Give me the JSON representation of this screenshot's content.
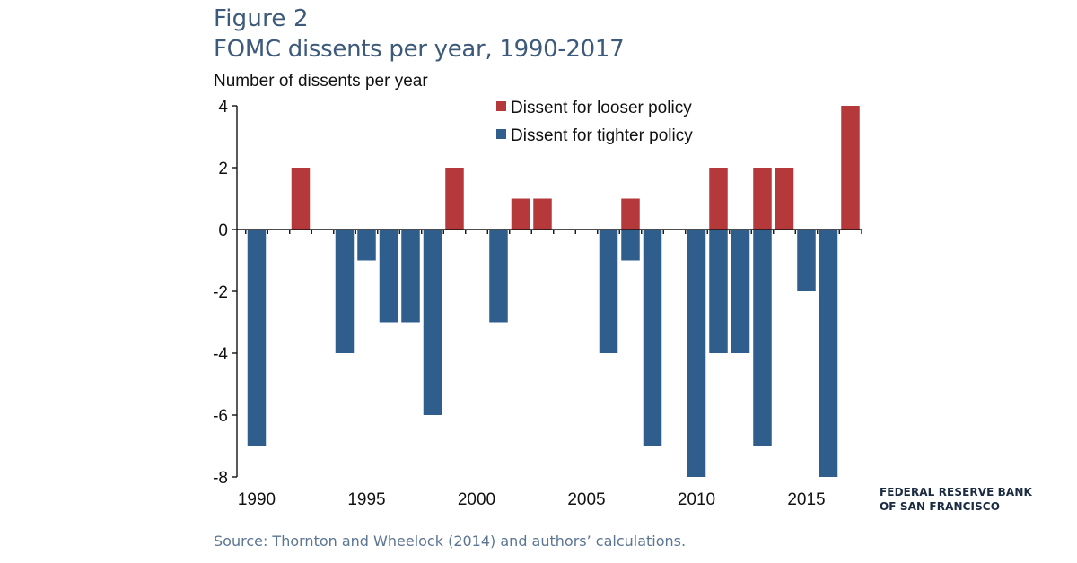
{
  "header": {
    "figure_label": "Figure 2",
    "title": "FOMC dissents per year, 1990-2017"
  },
  "footer": {
    "source": "Source: Thornton and Wheelock (2014) and authors’ calculations.",
    "brand_line1": "FEDERAL RESERVE BANK",
    "brand_line2": "OF SAN FRANCISCO"
  },
  "colors": {
    "looser": "#b5383a",
    "tighter": "#2f5d8c",
    "title": "#3d5a7a"
  },
  "chart_data": {
    "type": "bar",
    "title": "FOMC dissents per year, 1990-2017",
    "xlabel": "",
    "ylabel": "Number of dissents per year",
    "x_range": [
      1990,
      2017
    ],
    "ylim": [
      -8,
      4
    ],
    "y_ticks": [
      4,
      2,
      0,
      -2,
      -4,
      -6,
      -8
    ],
    "x_ticks": [
      1990,
      1995,
      2000,
      2005,
      2010,
      2015
    ],
    "grid": false,
    "legend_position": "top-right",
    "categories": [
      1990,
      1991,
      1992,
      1993,
      1994,
      1995,
      1996,
      1997,
      1998,
      1999,
      2000,
      2001,
      2002,
      2003,
      2004,
      2005,
      2006,
      2007,
      2008,
      2009,
      2010,
      2011,
      2012,
      2013,
      2014,
      2015,
      2016,
      2017
    ],
    "series": [
      {
        "name": "Dissent for looser policy",
        "color": "#b5383a",
        "values": [
          0,
          0,
          2,
          0,
          0,
          0,
          0,
          0,
          0,
          2,
          0,
          0,
          1,
          1,
          0,
          0,
          0,
          1,
          0,
          0,
          0,
          2,
          0,
          2,
          2,
          0,
          0,
          4
        ]
      },
      {
        "name": "Dissent for tighter policy",
        "color": "#2f5d8c",
        "values": [
          -7,
          0,
          0,
          0,
          -4,
          -1,
          -3,
          -3,
          -6,
          0,
          0,
          -3,
          0,
          0,
          0,
          0,
          -4,
          -1,
          -7,
          0,
          -8,
          -4,
          -4,
          -7,
          0,
          -2,
          -8,
          0
        ]
      }
    ]
  }
}
